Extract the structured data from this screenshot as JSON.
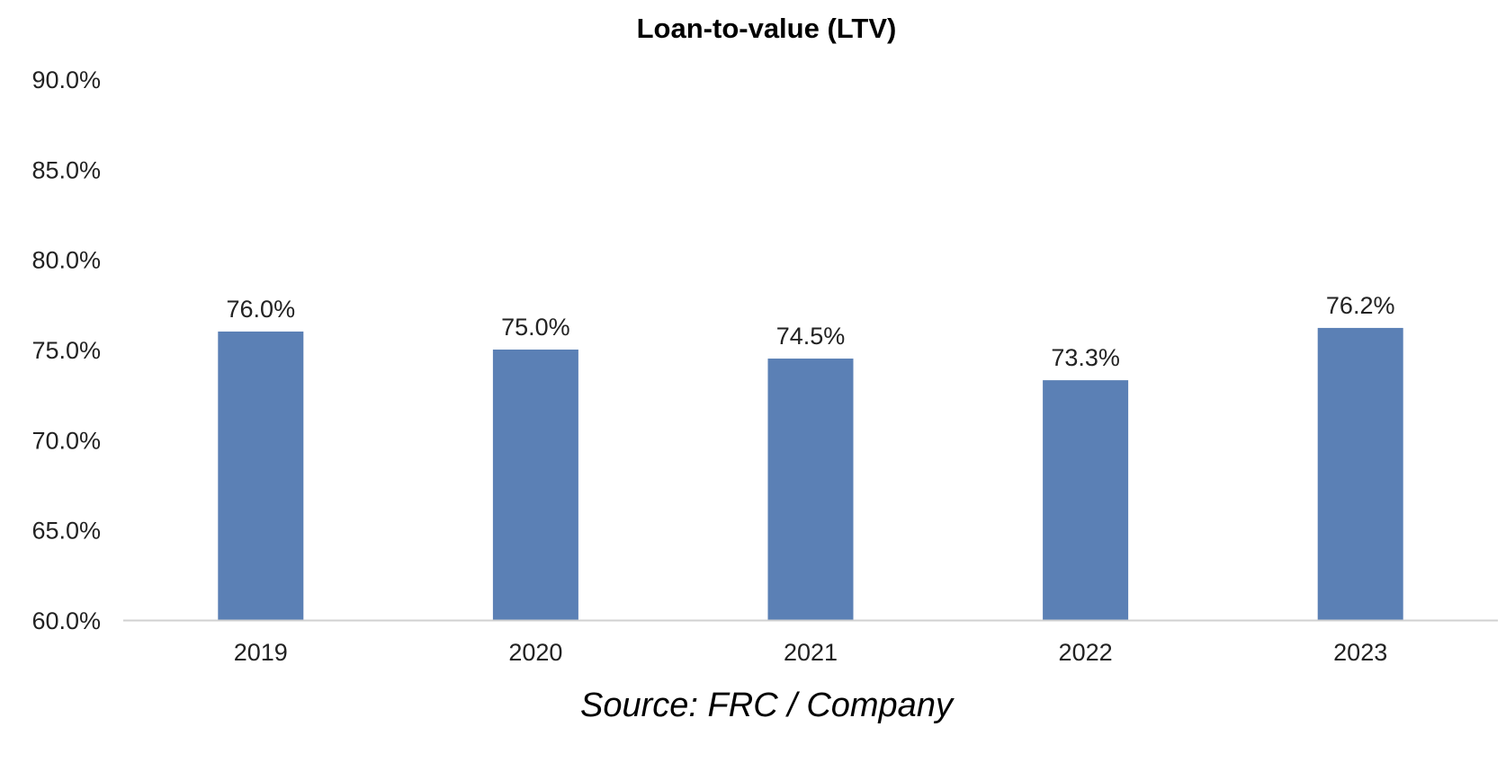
{
  "chart_data": {
    "type": "bar",
    "title": "Loan-to-value (LTV)",
    "xlabel": "",
    "ylabel": "",
    "categories": [
      "2019",
      "2020",
      "2021",
      "2022",
      "2023"
    ],
    "values": [
      76.0,
      75.0,
      74.5,
      73.3,
      76.2
    ],
    "data_labels": [
      "76.0%",
      "75.0%",
      "74.5%",
      "73.3%",
      "76.2%"
    ],
    "ylim": [
      60,
      90
    ],
    "yticks": [
      90,
      85,
      80,
      75,
      70,
      65,
      60
    ],
    "ytick_labels": [
      "90.0%",
      "85.0%",
      "80.0%",
      "75.0%",
      "70.0%",
      "65.0%",
      "60.0%"
    ],
    "grid": false,
    "legend": "none",
    "bar_color": "#5B80B5",
    "axis_color": "#D0D0D0"
  },
  "source_note": "Source: FRC / Company"
}
